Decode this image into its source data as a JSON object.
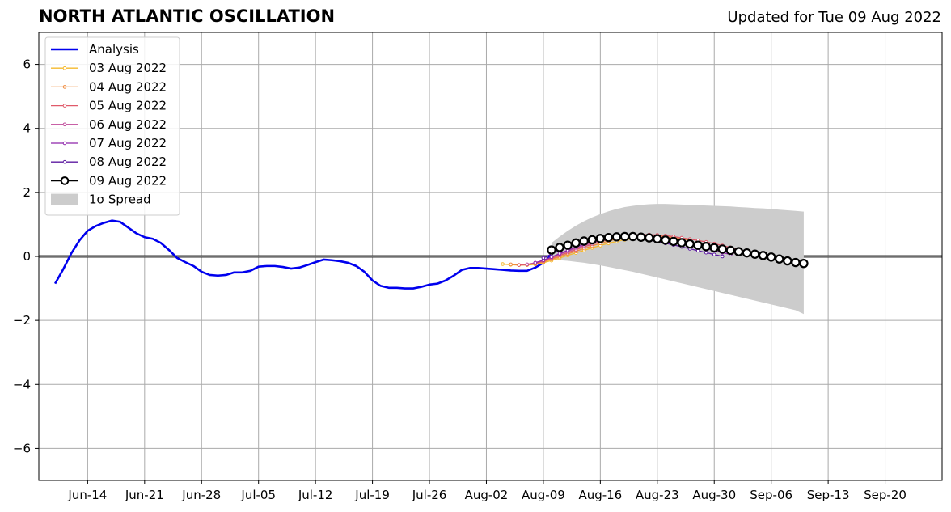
{
  "header": {
    "title": "NORTH ATLANTIC OSCILLATION",
    "subtitle": "Updated for Tue 09 Aug 2022"
  },
  "colors": {
    "analysis": "#0000ee",
    "spread": "#cccccc",
    "grid": "#aaaaaa",
    "zero_line": "#333333"
  },
  "chart_data": {
    "type": "line",
    "title": "NORTH ATLANTIC OSCILLATION",
    "subtitle": "Updated for Tue 09 Aug 2022",
    "xlabel": "",
    "ylabel": "",
    "xlim": [
      "2022-06-08",
      "2022-09-27"
    ],
    "ylim": [
      -7,
      7
    ],
    "grid": true,
    "legend_position": "top-left",
    "x_ticks": [
      "Jun-14",
      "Jun-21",
      "Jun-28",
      "Jul-05",
      "Jul-12",
      "Jul-19",
      "Jul-26",
      "Aug-02",
      "Aug-09",
      "Aug-16",
      "Aug-23",
      "Aug-30",
      "Sep-06",
      "Sep-13",
      "Sep-20"
    ],
    "x_tick_dates": [
      "2022-06-14",
      "2022-06-21",
      "2022-06-28",
      "2022-07-05",
      "2022-07-12",
      "2022-07-19",
      "2022-07-26",
      "2022-08-02",
      "2022-08-09",
      "2022-08-16",
      "2022-08-23",
      "2022-08-30",
      "2022-09-06",
      "2022-09-13",
      "2022-09-20"
    ],
    "y_ticks": [
      6,
      4,
      2,
      0,
      -2,
      -4,
      -6
    ],
    "y_tick_labels": [
      "6",
      "4",
      "2",
      "0",
      "−2",
      "−4",
      "−6"
    ],
    "analysis": {
      "name": "Analysis",
      "color": "#0000ee",
      "start_date": "2022-06-10",
      "values": [
        -0.85,
        -0.4,
        0.1,
        0.5,
        0.8,
        0.95,
        1.05,
        1.12,
        1.08,
        0.9,
        0.72,
        0.6,
        0.55,
        0.42,
        0.2,
        -0.05,
        -0.18,
        -0.3,
        -0.48,
        -0.58,
        -0.6,
        -0.58,
        -0.5,
        -0.5,
        -0.45,
        -0.32,
        -0.3,
        -0.3,
        -0.33,
        -0.38,
        -0.35,
        -0.27,
        -0.18,
        -0.1,
        -0.12,
        -0.15,
        -0.2,
        -0.3,
        -0.48,
        -0.75,
        -0.92,
        -0.98,
        -0.98,
        -1.0,
        -1.0,
        -0.95,
        -0.88,
        -0.85,
        -0.75,
        -0.6,
        -0.42,
        -0.36,
        -0.36,
        -0.38,
        -0.4,
        -0.42,
        -0.44,
        -0.45,
        -0.45,
        -0.35,
        -0.2,
        0.05
      ]
    },
    "series": [
      {
        "name": "03 Aug 2022",
        "color": "#f5b92d",
        "start_date": "2022-08-04",
        "values": [
          -0.24,
          -0.26,
          -0.27,
          -0.27,
          -0.25,
          -0.2,
          -0.13,
          -0.05,
          0.03,
          0.11,
          0.19,
          0.27,
          0.34,
          0.41,
          0.47,
          0.52,
          0.55,
          0.57,
          0.58,
          0.58,
          0.56,
          0.52
        ]
      },
      {
        "name": "04 Aug 2022",
        "color": "#f08a3c",
        "start_date": "2022-08-05",
        "values": [
          -0.25,
          -0.27,
          -0.26,
          -0.23,
          -0.17,
          -0.09,
          -0.01,
          0.08,
          0.16,
          0.25,
          0.33,
          0.41,
          0.48,
          0.54,
          0.58,
          0.61,
          0.63,
          0.64,
          0.64,
          0.62,
          0.59,
          0.55,
          0.5
        ]
      },
      {
        "name": "05 Aug 2022",
        "color": "#e05a6a",
        "start_date": "2022-08-06",
        "values": [
          -0.27,
          -0.26,
          -0.22,
          -0.15,
          -0.06,
          0.03,
          0.12,
          0.21,
          0.3,
          0.38,
          0.46,
          0.53,
          0.59,
          0.63,
          0.66,
          0.68,
          0.68,
          0.67,
          0.65,
          0.62,
          0.58,
          0.54,
          0.5,
          0.45,
          0.4,
          0.34,
          0.28,
          0.22,
          0.15,
          0.08
        ]
      },
      {
        "name": "06 Aug 2022",
        "color": "#c04a9a",
        "start_date": "2022-08-07",
        "values": [
          -0.25,
          -0.2,
          -0.12,
          -0.03,
          0.07,
          0.16,
          0.25,
          0.34,
          0.42,
          0.5,
          0.56,
          0.61,
          0.64,
          0.66,
          0.66,
          0.65,
          0.62,
          0.58,
          0.54,
          0.49,
          0.44,
          0.38,
          0.32,
          0.26,
          0.2,
          0.13,
          0.07
        ]
      },
      {
        "name": "07 Aug 2022",
        "color": "#8e24aa",
        "start_date": "2022-08-08",
        "values": [
          -0.2,
          -0.12,
          -0.02,
          0.09,
          0.19,
          0.29,
          0.38,
          0.46,
          0.53,
          0.58,
          0.62,
          0.64,
          0.64,
          0.63,
          0.6,
          0.56,
          0.52,
          0.47,
          0.42,
          0.36,
          0.3,
          0.24,
          0.18,
          0.12,
          0.06
        ]
      },
      {
        "name": "08 Aug 2022",
        "color": "#5c1aa0",
        "start_date": "2022-08-09",
        "values": [
          -0.05,
          0.08,
          0.2,
          0.31,
          0.4,
          0.47,
          0.53,
          0.57,
          0.6,
          0.61,
          0.61,
          0.59,
          0.55,
          0.51,
          0.46,
          0.41,
          0.36,
          0.3,
          0.24,
          0.18,
          0.12,
          0.06,
          0.0
        ]
      },
      {
        "name": "09 Aug 2022",
        "color": "#000000",
        "start_date": "2022-08-10",
        "values": [
          0.2,
          0.28,
          0.35,
          0.42,
          0.48,
          0.52,
          0.56,
          0.59,
          0.61,
          0.62,
          0.62,
          0.6,
          0.58,
          0.55,
          0.51,
          0.47,
          0.43,
          0.39,
          0.35,
          0.31,
          0.27,
          0.23,
          0.19,
          0.15,
          0.11,
          0.07,
          0.03,
          -0.02,
          -0.08,
          -0.14,
          -0.19,
          -0.22
        ]
      }
    ],
    "spread": {
      "name": "1σ Spread",
      "color": "#cccccc",
      "start_date": "2022-08-10",
      "upper": [
        0.42,
        0.62,
        0.8,
        0.96,
        1.1,
        1.22,
        1.32,
        1.41,
        1.48,
        1.54,
        1.58,
        1.61,
        1.63,
        1.64,
        1.64,
        1.63,
        1.62,
        1.61,
        1.6,
        1.59,
        1.58,
        1.57,
        1.56,
        1.54,
        1.53,
        1.51,
        1.5,
        1.48,
        1.46,
        1.44,
        1.42,
        1.4
      ],
      "lower": [
        -0.1,
        -0.12,
        -0.14,
        -0.17,
        -0.2,
        -0.24,
        -0.28,
        -0.33,
        -0.38,
        -0.43,
        -0.48,
        -0.54,
        -0.6,
        -0.66,
        -0.72,
        -0.78,
        -0.84,
        -0.9,
        -0.96,
        -1.02,
        -1.08,
        -1.14,
        -1.2,
        -1.26,
        -1.32,
        -1.38,
        -1.44,
        -1.5,
        -1.56,
        -1.62,
        -1.68,
        -1.8
      ]
    },
    "legend": [
      "Analysis",
      "03 Aug 2022",
      "04 Aug 2022",
      "05 Aug 2022",
      "06 Aug 2022",
      "07 Aug 2022",
      "08 Aug 2022",
      "09 Aug 2022",
      "1σ Spread"
    ]
  }
}
